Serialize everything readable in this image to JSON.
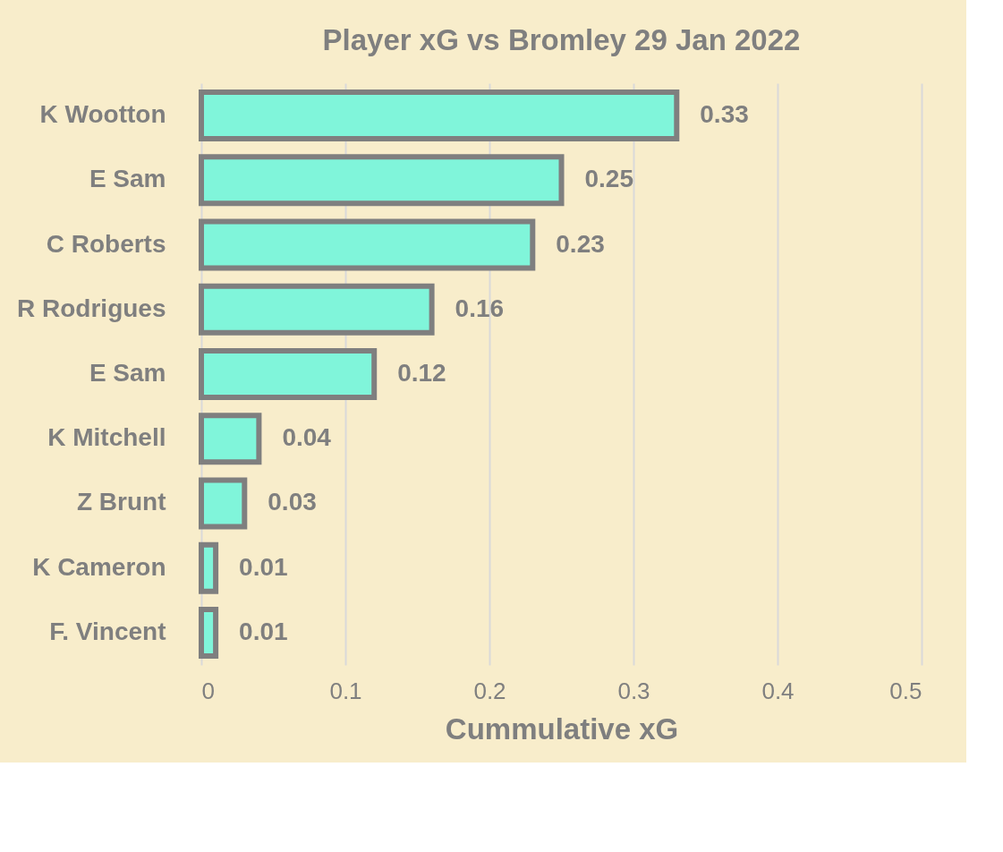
{
  "chart_data": {
    "type": "bar",
    "orientation": "horizontal",
    "title": "Player xG vs Bromley 29 Jan 2022",
    "xlabel": "Cummulative xG",
    "categories": [
      "K Wootton",
      "E Sam",
      "C Roberts",
      "R Rodrigues",
      "E Sam",
      "K Mitchell",
      "Z Brunt",
      "K Cameron",
      "F. Vincent"
    ],
    "values": [
      0.33,
      0.25,
      0.23,
      0.16,
      0.12,
      0.04,
      0.03,
      0.01,
      0.01
    ],
    "color": "#80f5da",
    "xlim": [
      0,
      0.5
    ],
    "xticks": [
      0,
      0.1,
      0.2,
      0.3,
      0.4,
      0.5
    ],
    "grid": "x",
    "data_labels": true
  }
}
